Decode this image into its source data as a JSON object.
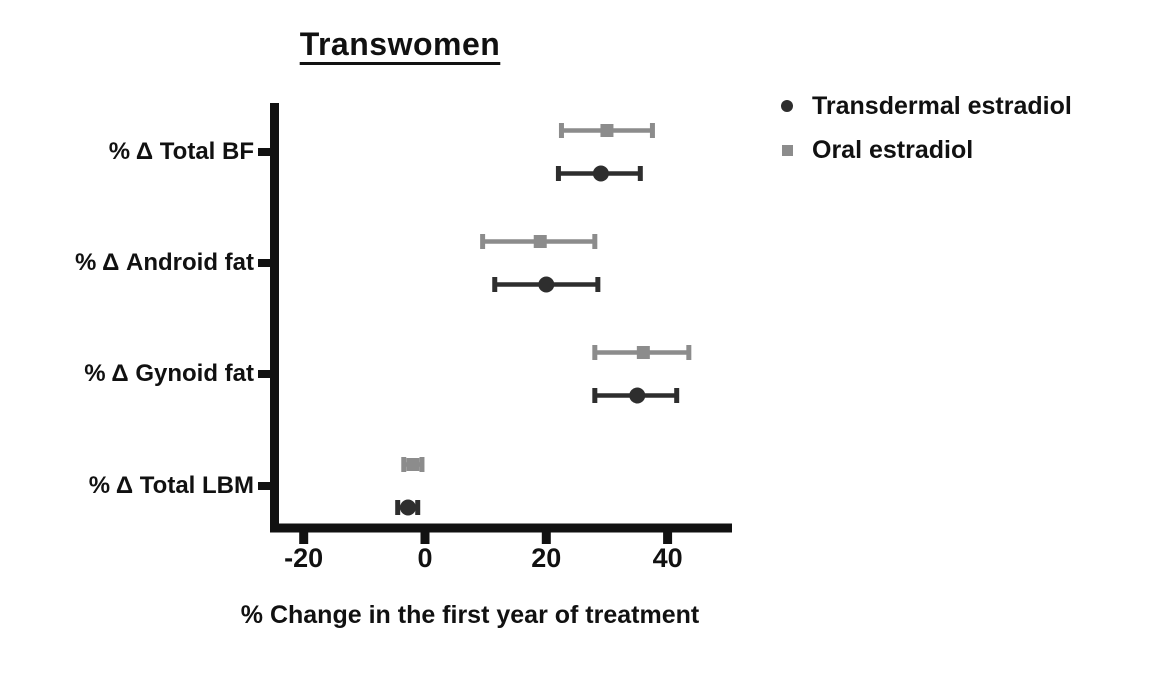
{
  "chart_data": {
    "type": "scatter",
    "orientation": "horizontal",
    "title": "Transwomen",
    "xlabel": "% Change in the first year of treatment",
    "categories": [
      "% Δ Total BF",
      "% Δ Android fat",
      "% Δ Gynoid fat",
      "% Δ Total LBM"
    ],
    "xticks": [
      -20,
      0,
      20,
      40
    ],
    "xtick_labels": [
      "-20",
      "0",
      "20",
      "40"
    ],
    "xlim": [
      -25.5,
      50.5
    ],
    "grid": false,
    "legend_position": "top-right",
    "series": [
      {
        "name": "Transdermal estradiol",
        "marker": "circle",
        "color": "#2e2e2e",
        "points": [
          {
            "category": "% Δ Total BF",
            "mean": 29,
            "lo": 22,
            "hi": 35.5
          },
          {
            "category": "% Δ Android fat",
            "mean": 20,
            "lo": 11.5,
            "hi": 28.5
          },
          {
            "category": "% Δ Gynoid fat",
            "mean": 35,
            "lo": 28,
            "hi": 41.5
          },
          {
            "category": "% Δ Total LBM",
            "mean": -2.8,
            "lo": -4.5,
            "hi": -1.2
          }
        ]
      },
      {
        "name": "Oral estradiol",
        "marker": "square",
        "color": "#8c8c8c",
        "points": [
          {
            "category": "% Δ Total BF",
            "mean": 30,
            "lo": 22.5,
            "hi": 37.5
          },
          {
            "category": "% Δ Android fat",
            "mean": 19,
            "lo": 9.5,
            "hi": 28
          },
          {
            "category": "% Δ Gynoid fat",
            "mean": 36,
            "lo": 28,
            "hi": 43.5
          },
          {
            "category": "% Δ Total LBM",
            "mean": -2,
            "lo": -3.5,
            "hi": -0.5
          }
        ]
      }
    ],
    "colors": {
      "axis": "#111111",
      "text": "#111111"
    }
  }
}
